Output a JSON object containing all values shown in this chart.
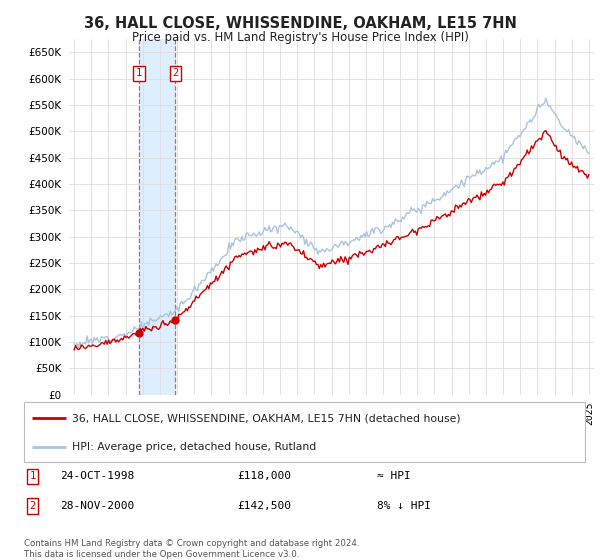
{
  "title": "36, HALL CLOSE, WHISSENDINE, OAKHAM, LE15 7HN",
  "subtitle": "Price paid vs. HM Land Registry's House Price Index (HPI)",
  "hpi_color": "#aac4e0",
  "price_color": "#cc0000",
  "sale1_t": 1998.79,
  "sale1_price": 118000,
  "sale1_label": "≈ HPI",
  "sale2_t": 2000.9,
  "sale2_price": 142500,
  "sale2_label": "8% ↓ HPI",
  "legend_line1": "36, HALL CLOSE, WHISSENDINE, OAKHAM, LE15 7HN (detached house)",
  "legend_line2": "HPI: Average price, detached house, Rutland",
  "footnote": "Contains HM Land Registry data © Crown copyright and database right 2024.\nThis data is licensed under the Open Government Licence v3.0.",
  "ylim_min": 0,
  "ylim_max": 675000,
  "xlim_min": 1994.7,
  "xlim_max": 2025.3,
  "background_color": "#ffffff",
  "grid_color": "#dddddd",
  "shaded_color": "#ddeeff"
}
